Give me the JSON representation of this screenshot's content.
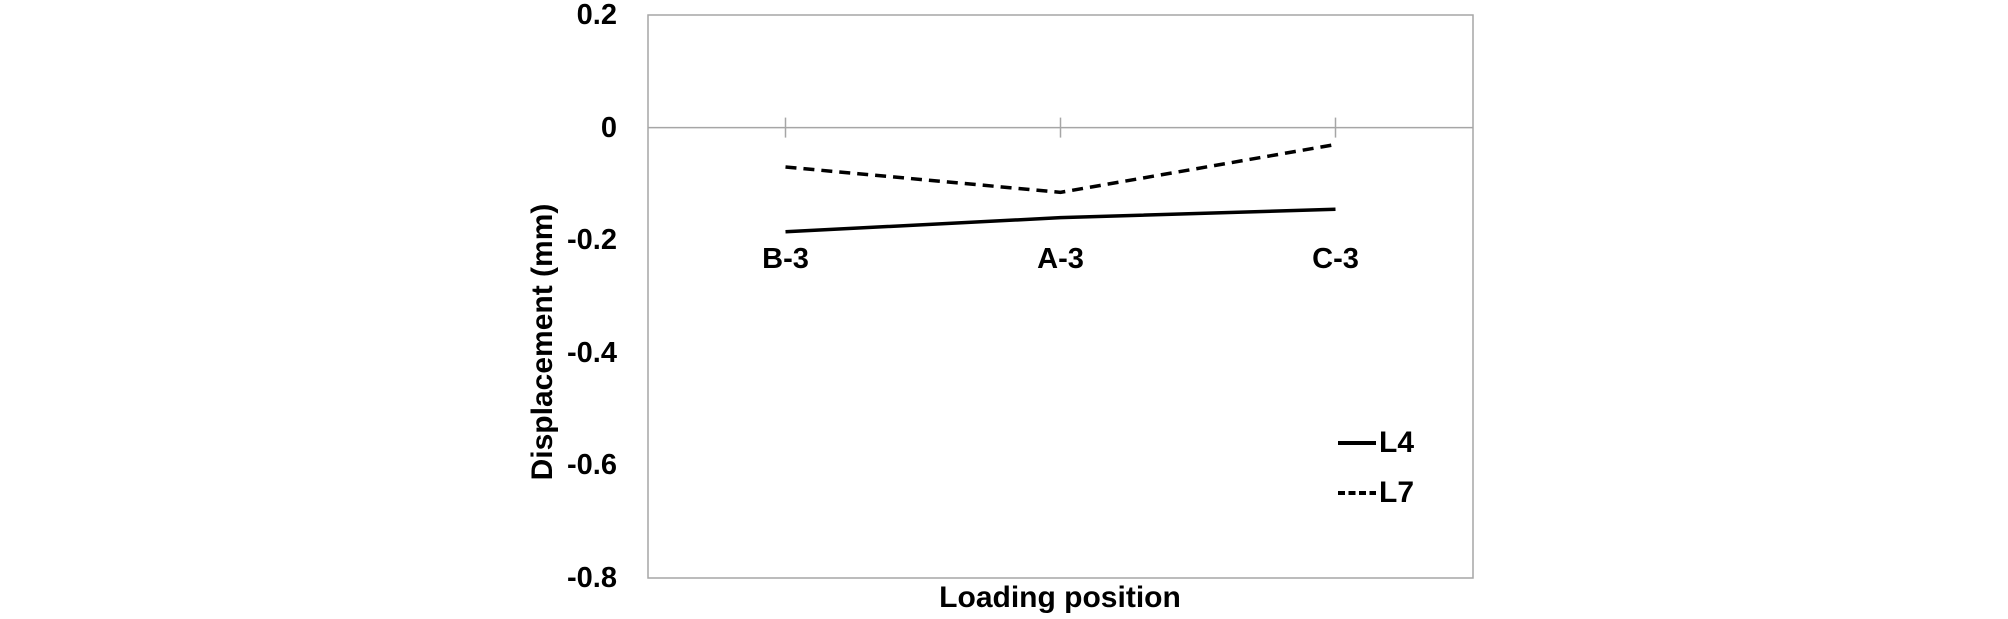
{
  "figure": {
    "background": "#ffffff"
  },
  "chart_data": {
    "type": "line",
    "title": "",
    "xlabel": "Loading position",
    "ylabel": "Displacement (mm)",
    "categories": [
      "B-3",
      "A-3",
      "C-3"
    ],
    "series": [
      {
        "name": "L4",
        "style": "solid",
        "color": "#000000",
        "values": [
          -0.185,
          -0.16,
          -0.145
        ]
      },
      {
        "name": "L7",
        "style": "dashed",
        "color": "#000000",
        "values": [
          -0.07,
          -0.115,
          -0.03
        ]
      }
    ],
    "ylim": [
      -0.8,
      0.2
    ],
    "yticks": [
      0.2,
      0,
      -0.2,
      -0.4,
      -0.6,
      -0.8
    ],
    "ytick_labels": [
      "0.2",
      "0",
      "-0.2",
      "-0.4",
      "-0.6",
      "-0.8"
    ],
    "grid": "zero-line-only",
    "legend_position": "inside-right",
    "axis_color": "#a6a6a6",
    "text_color": "#000000"
  }
}
